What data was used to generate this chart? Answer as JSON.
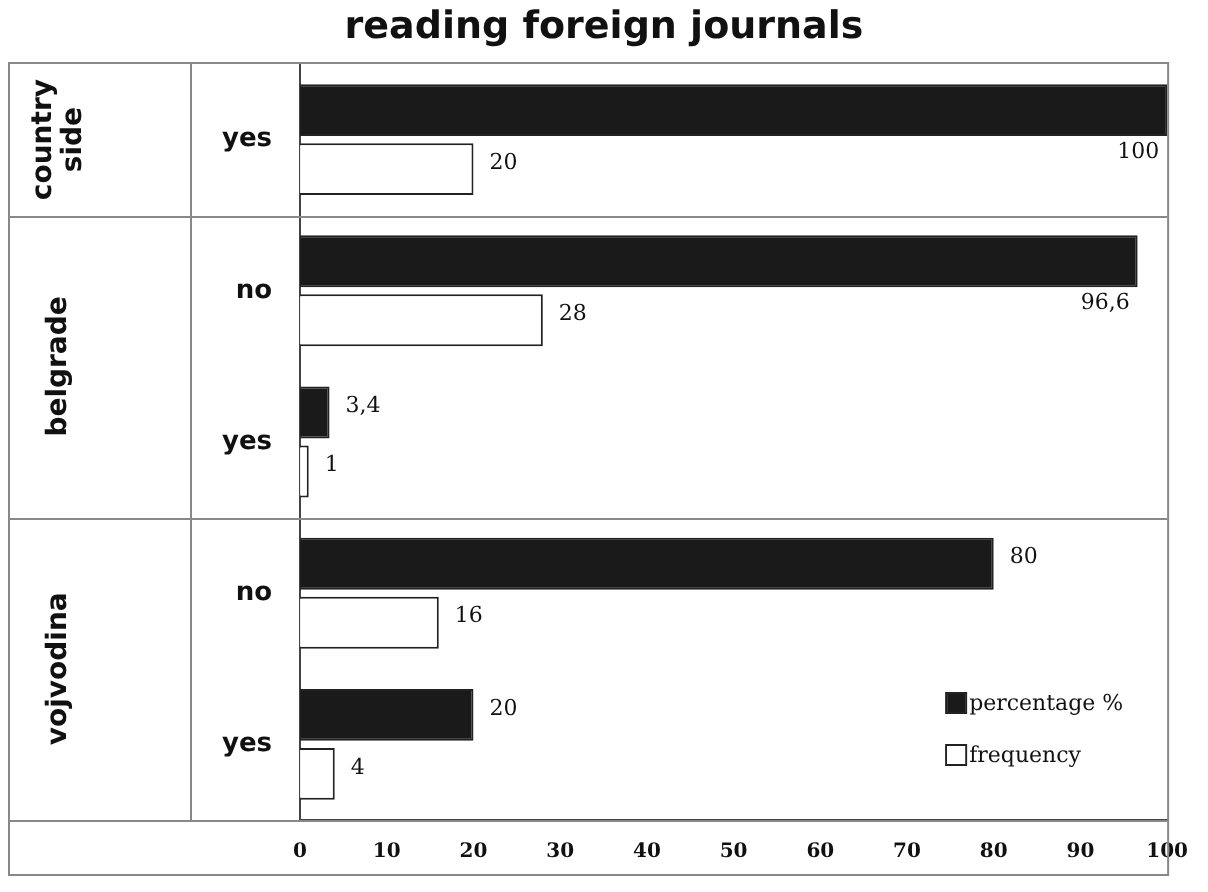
{
  "chart_data": {
    "type": "bar",
    "orientation": "horizontal",
    "title": "reading foreign journals",
    "categories": [
      "yes",
      "no",
      "yes",
      "no",
      "yes"
    ],
    "series": [
      {
        "name": "percentage %",
        "color": "#1a1a1a",
        "values": [
          100,
          96.6,
          3.4,
          80,
          20
        ],
        "value_labels": [
          "100",
          "96,6",
          "3,4",
          "80",
          "20"
        ]
      },
      {
        "name": "frequency",
        "color": "#ffffff",
        "values": [
          20,
          28,
          1,
          16,
          4
        ],
        "value_labels": [
          "20",
          "28",
          "1",
          "16",
          "4"
        ]
      }
    ],
    "annotations": [
      "countryside",
      "belgrade",
      "vojvodina"
    ],
    "xlim": [
      0,
      100
    ],
    "xticks": [
      0,
      10,
      20,
      30,
      40,
      50,
      60,
      70,
      80,
      90,
      100
    ],
    "grid": false,
    "legend": "bottom right"
  }
}
